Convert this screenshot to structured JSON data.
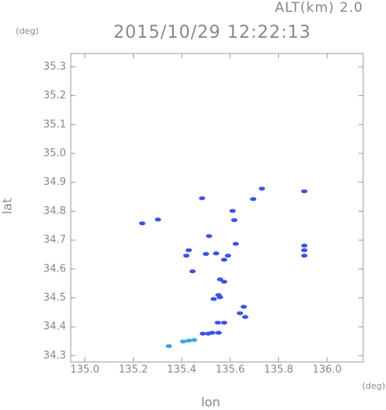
{
  "chart_data": {
    "type": "scatter",
    "title": "2015/10/29 12:22:13",
    "subtitle": "ALT(km) 2.0",
    "x_label": "lon",
    "y_label": "lat",
    "x_unit": "(deg)",
    "y_unit": "(deg)",
    "xlim": [
      134.942,
      136.149
    ],
    "ylim": [
      34.278,
      35.346
    ],
    "xticks": [
      {
        "value": 135,
        "label": "135.0"
      },
      135.2,
      135.4,
      135.6,
      135.8,
      {
        "value": 136,
        "label": "136.0"
      }
    ],
    "yticks": [
      34.3,
      34.4,
      34.5,
      34.6,
      34.7,
      34.8,
      34.9,
      {
        "value": 35,
        "label": "35.0"
      },
      35.1,
      35.2,
      35.3
    ],
    "series": [
      {
        "color": "#3d52e6",
        "x": [
          135.237,
          135.302,
          135.419,
          135.429,
          135.445,
          135.5,
          135.542,
          135.575,
          135.591,
          135.623,
          135.617,
          135.558,
          135.575,
          135.552,
          135.532,
          135.558,
          135.656,
          135.662,
          135.64,
          135.549,
          135.575,
          135.526,
          135.552,
          135.487,
          135.51,
          135.906,
          135.906,
          135.906,
          135.484,
          135.731,
          135.906,
          135.61,
          135.695,
          135.513
        ],
        "values": [
          34.758,
          34.771,
          34.646,
          34.665,
          34.592,
          34.652,
          34.654,
          34.632,
          34.646,
          34.687,
          34.769,
          34.564,
          34.556,
          34.51,
          34.496,
          34.502,
          34.469,
          34.434,
          34.447,
          34.414,
          34.414,
          34.379,
          34.379,
          34.376,
          34.376,
          34.665,
          34.646,
          34.681,
          34.845,
          34.878,
          34.869,
          34.801,
          34.842,
          34.714
        ]
      },
      {
        "color": "#3aa3ea",
        "x": [
          135.429,
          135.406,
          135.451,
          135.347
        ],
        "values": [
          34.352,
          34.349,
          34.354,
          34.333
        ]
      }
    ]
  }
}
